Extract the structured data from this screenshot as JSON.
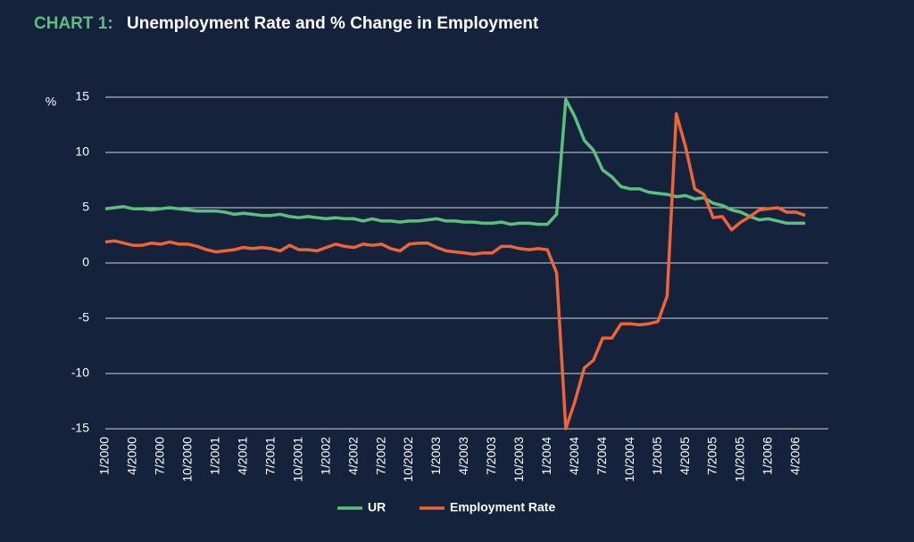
{
  "chart_data": {
    "type": "line",
    "title_label": "CHART 1:",
    "title": "Unemployment Rate and % Change in Employment",
    "y_label": "%",
    "categories": [
      "1/2000",
      null,
      null,
      "4/2000",
      null,
      null,
      "7/2000",
      null,
      null,
      "10/2000",
      null,
      null,
      "1/2001",
      null,
      null,
      "4/2001",
      null,
      null,
      "7/2001",
      null,
      null,
      "10/2001",
      null,
      null,
      "1/2002",
      null,
      null,
      "4/2002",
      null,
      null,
      "7/2002",
      null,
      null,
      "10/2002",
      null,
      null,
      "1/2003",
      null,
      null,
      "4/2003",
      null,
      null,
      "7/2003",
      null,
      null,
      "10/2003",
      null,
      null,
      "1/2004",
      null,
      null,
      "4/2004",
      null,
      null,
      "7/2004",
      null,
      null,
      "10/2004",
      null,
      null,
      "1/2005",
      null,
      null,
      "4/2005",
      null,
      null,
      "7/2005",
      null,
      null,
      "10/2005",
      null,
      null,
      "1/2006",
      null,
      null,
      "4/2006",
      null
    ],
    "series": [
      {
        "name": "UR",
        "color": "#5cbf7d",
        "values": [
          4.9,
          5.0,
          5.1,
          4.9,
          4.9,
          4.8,
          4.9,
          5.0,
          4.9,
          4.8,
          4.7,
          4.7,
          4.7,
          4.6,
          4.4,
          4.5,
          4.4,
          4.3,
          4.3,
          4.4,
          4.2,
          4.1,
          4.2,
          4.1,
          4.0,
          4.1,
          4.0,
          4.0,
          3.8,
          4.0,
          3.8,
          3.8,
          3.7,
          3.8,
          3.8,
          3.9,
          4.0,
          3.8,
          3.8,
          3.7,
          3.7,
          3.6,
          3.6,
          3.7,
          3.5,
          3.6,
          3.6,
          3.5,
          3.5,
          4.4,
          14.8,
          13.2,
          11.1,
          10.2,
          8.4,
          7.8,
          6.9,
          6.7,
          6.7,
          6.4,
          6.3,
          6.2,
          6.0,
          6.1,
          5.8,
          5.9,
          5.4,
          5.2,
          4.8,
          4.6,
          4.2,
          3.9,
          4.0,
          3.8,
          3.6,
          3.6,
          3.6
        ]
      },
      {
        "name": "Employment Rate",
        "color": "#ec6438",
        "values": [
          1.9,
          2.0,
          1.8,
          1.6,
          1.6,
          1.8,
          1.7,
          1.9,
          1.7,
          1.7,
          1.5,
          1.2,
          1.0,
          1.1,
          1.2,
          1.4,
          1.3,
          1.4,
          1.3,
          1.1,
          1.6,
          1.2,
          1.2,
          1.1,
          1.4,
          1.7,
          1.5,
          1.4,
          1.7,
          1.6,
          1.7,
          1.3,
          1.1,
          1.7,
          1.8,
          1.8,
          1.4,
          1.1,
          1.0,
          0.9,
          0.8,
          0.9,
          0.9,
          1.5,
          1.5,
          1.3,
          1.2,
          1.3,
          1.2,
          -0.9,
          -15.0,
          -12.5,
          -9.5,
          -8.8,
          -6.8,
          -6.8,
          -5.5,
          -5.5,
          -5.6,
          -5.5,
          -5.3,
          -3.0,
          13.5,
          10.5,
          6.7,
          6.2,
          4.1,
          4.2,
          3.0,
          3.7,
          4.2,
          4.8,
          4.9,
          5.0,
          4.6,
          4.6,
          4.3
        ]
      }
    ],
    "ylim": [
      -15,
      15
    ],
    "yticks": [
      -15,
      -10,
      -5,
      0,
      5,
      10,
      15
    ],
    "grid": true,
    "legend": "bottom"
  }
}
